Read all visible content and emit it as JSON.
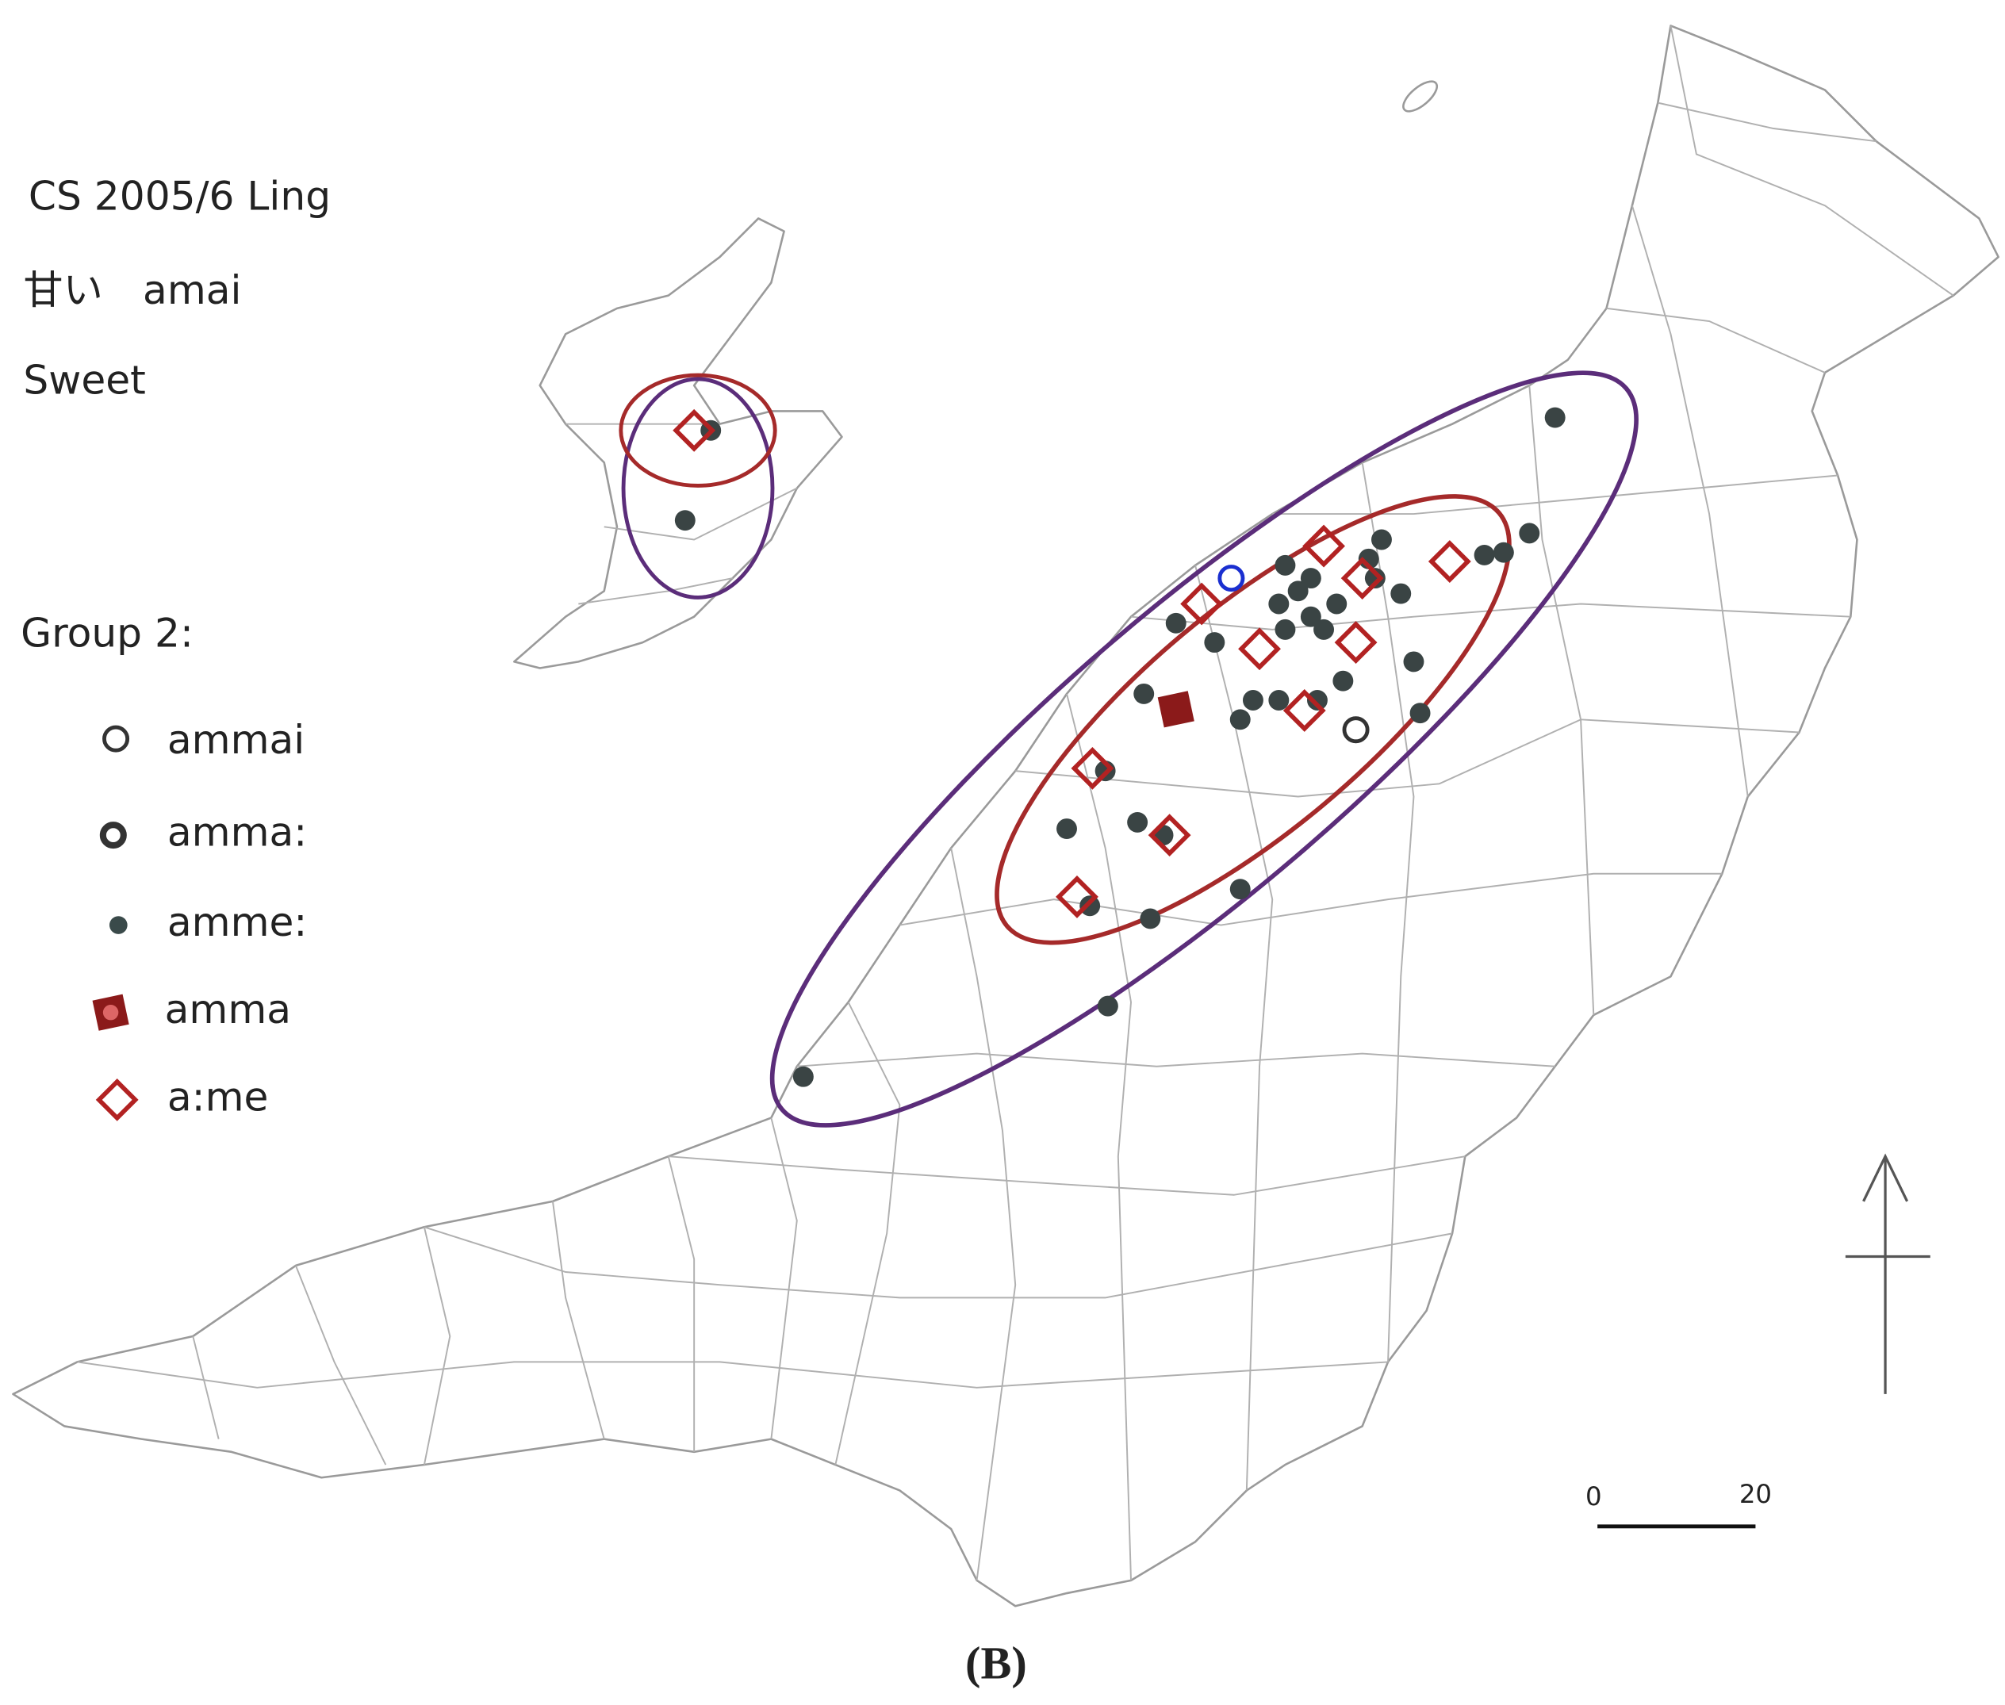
{
  "legend": {
    "title": [
      "CS 2005/6 Ling",
      "甘い　amai",
      "Sweet"
    ],
    "group": "Group 2:",
    "items": [
      "ammai",
      "amma:",
      "amme:",
      "amma",
      "a:me"
    ]
  },
  "scale": {
    "start": "0",
    "end": "20"
  },
  "caption": "(B)"
}
